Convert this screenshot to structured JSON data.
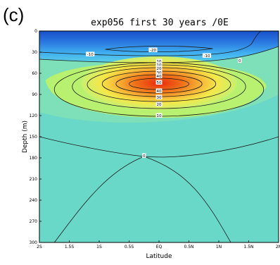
{
  "panel_label": "(c)",
  "chart_data": {
    "type": "heatmap",
    "title": "exp056 first 30 years /0E",
    "xlabel": "Latitude",
    "ylabel": "Depth (m)",
    "xlim": [
      -2,
      2
    ],
    "ylim": [
      300,
      0
    ],
    "x_ticks": [
      {
        "value": -2,
        "label": "2S"
      },
      {
        "value": -1.5,
        "label": "1.5S"
      },
      {
        "value": -1,
        "label": "1S"
      },
      {
        "value": -0.5,
        "label": "0.5S"
      },
      {
        "value": 0,
        "label": "EQ"
      },
      {
        "value": 0.5,
        "label": "0.5N"
      },
      {
        "value": 1,
        "label": "1N"
      },
      {
        "value": 1.5,
        "label": "1.5N"
      },
      {
        "value": 2,
        "label": "2N"
      }
    ],
    "y_ticks": [
      {
        "value": 0,
        "label": "0"
      },
      {
        "value": 30,
        "label": "30"
      },
      {
        "value": 60,
        "label": "60"
      },
      {
        "value": 90,
        "label": "90"
      },
      {
        "value": 120,
        "label": "120"
      },
      {
        "value": 150,
        "label": "150"
      },
      {
        "value": 180,
        "label": "180"
      },
      {
        "value": 210,
        "label": "210"
      },
      {
        "value": 240,
        "label": "240"
      },
      {
        "value": 270,
        "label": "270"
      },
      {
        "value": 300,
        "label": "300"
      }
    ],
    "contour_labels": [
      {
        "text": "-20",
        "x": -0.1,
        "y": 27
      },
      {
        "text": "-10",
        "x": -1.15,
        "y": 33
      },
      {
        "text": "-10",
        "x": 0.8,
        "y": 35
      },
      {
        "text": "0",
        "x": 1.35,
        "y": 42
      },
      {
        "text": "10",
        "x": 0,
        "y": 43
      },
      {
        "text": "10",
        "x": 0,
        "y": 48
      },
      {
        "text": "20",
        "x": 0,
        "y": 53
      },
      {
        "text": "30",
        "x": 0,
        "y": 59
      },
      {
        "text": "40",
        "x": 0,
        "y": 64
      },
      {
        "text": "50",
        "x": 0,
        "y": 73
      },
      {
        "text": "40",
        "x": 0,
        "y": 85
      },
      {
        "text": "30",
        "x": 0,
        "y": 94
      },
      {
        "text": "20",
        "x": 0,
        "y": 104
      },
      {
        "text": "10",
        "x": 0,
        "y": 120
      },
      {
        "text": "0",
        "x": -0.25,
        "y": 177
      }
    ],
    "colors": {
      "negative_strong": "#2060d0",
      "negative": "#48b8f0",
      "zero": "#6ad8c8",
      "low": "#b8f070",
      "mid": "#f8e040",
      "high": "#f08020",
      "max": "#e03010"
    }
  }
}
